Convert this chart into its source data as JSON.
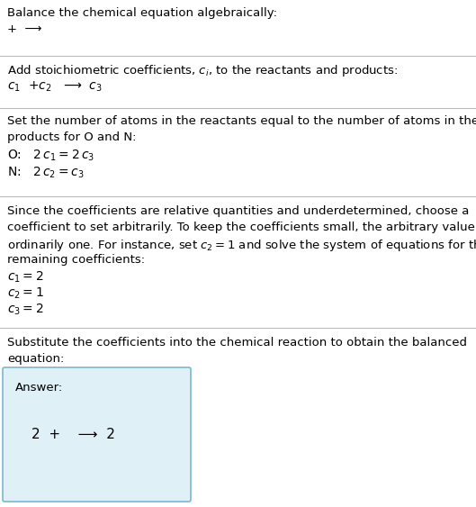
{
  "title": "Balance the chemical equation algebraically:",
  "line1": "+  ⟶",
  "section1_header": "Add stoichiometric coefficients, $c_i$, to the reactants and products:",
  "section1_eq_parts": [
    "$c_1$  +$c_2$   ⟶  $c_3$"
  ],
  "section2_header_l1": "Set the number of atoms in the reactants equal to the number of atoms in the",
  "section2_header_l2": "products for O and N:",
  "section2_O": "O:   $2\\,c_1 = 2\\,c_3$",
  "section2_N": "N:   $2\\,c_2 = c_3$",
  "section3_header_l1": "Since the coefficients are relative quantities and underdetermined, choose a",
  "section3_header_l2": "coefficient to set arbitrarily. To keep the coefficients small, the arbitrary value is",
  "section3_header_l3": "ordinarily one. For instance, set $c_2 = 1$ and solve the system of equations for the",
  "section3_header_l4": "remaining coefficients:",
  "section3_c1": "$c_1 = 2$",
  "section3_c2": "$c_2 = 1$",
  "section3_c3": "$c_3 = 2$",
  "section4_header_l1": "Substitute the coefficients into the chemical reaction to obtain the balanced",
  "section4_header_l2": "equation:",
  "answer_label": "Answer:",
  "answer_eq": "2  +    ⟶  2",
  "bg_color": "#ffffff",
  "answer_bg_color": "#dff0f7",
  "answer_border_color": "#7ab8cc",
  "line_color": "#bbbbbb",
  "text_color": "#000000",
  "font_size": 9.5,
  "eq_font_size": 10.0
}
